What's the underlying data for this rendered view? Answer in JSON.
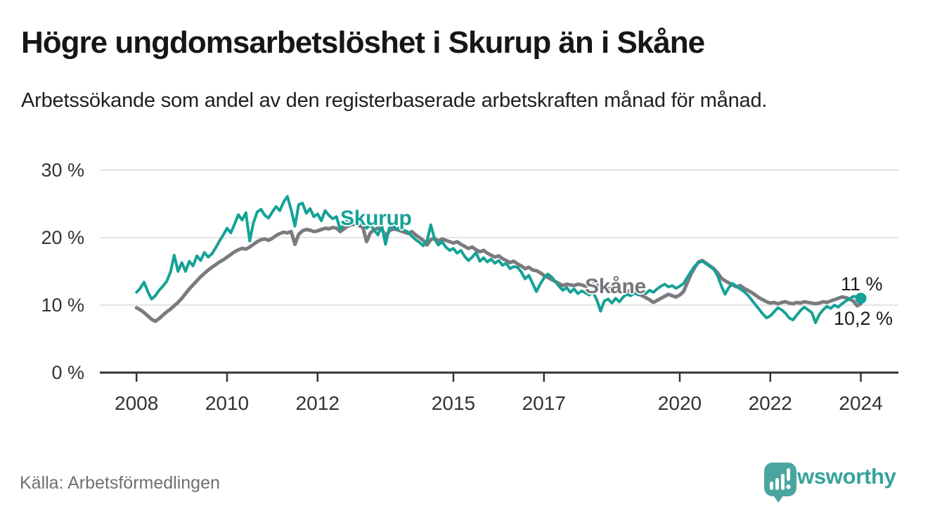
{
  "header": {
    "title": "Högre ungdomsarbetslöshet i Skurup än i Skåne",
    "subtitle": "Arbetssökande som andel av den registerbaserade arbetskraften månad för månad."
  },
  "footer": {
    "source": "Källa: Arbetsförmedlingen",
    "logo": {
      "brand": "Newsworthy",
      "icon": "newsworthy-speech-bubble-bar-chart-icon"
    }
  },
  "colors": {
    "skurup": "#15a296",
    "skane": "#7b7a7f",
    "grid": "#dcdcdc",
    "axis": "#333333",
    "tick_text": "#333333",
    "title_text": "#161616",
    "source_text": "#6f6f6f",
    "logo_teal": "#4aa5a0",
    "wordmark_teal": "#35a29b"
  },
  "chart_data": {
    "type": "line",
    "title": "Högre ungdomsarbetslöshet i Skurup än i Skåne",
    "subtitle": "Arbetssökande som andel av den registerbaserade arbetskraften månad för månad.",
    "xlabel": "",
    "ylabel": "",
    "grid": "horizontal",
    "legend_position": "direct-labels-on-lines",
    "ylim": [
      0,
      30
    ],
    "xlim": [
      2007.19,
      2024.83
    ],
    "x_unit": "decimal year, monthly points: t = 2008 + i/12",
    "x_start": "2008-01",
    "frequency": "monthly",
    "y_ticks": [
      {
        "value": 0,
        "label": "0 %"
      },
      {
        "value": 10,
        "label": "10 %"
      },
      {
        "value": 20,
        "label": "20 %"
      },
      {
        "value": 30,
        "label": "30 %"
      }
    ],
    "x_ticks": [
      {
        "year": 2008,
        "label": "2008"
      },
      {
        "year": 2010,
        "label": "2010"
      },
      {
        "year": 2012,
        "label": "2012"
      },
      {
        "year": 2015,
        "label": "2015"
      },
      {
        "year": 2017,
        "label": "2017"
      },
      {
        "year": 2020,
        "label": "2020"
      },
      {
        "year": 2022,
        "label": "2022"
      },
      {
        "year": 2024,
        "label": "2024"
      }
    ],
    "series": [
      {
        "name": "Skurup",
        "color": "#15a296",
        "end_label": "11 %",
        "end_value": 11.0,
        "values": [
          11.9,
          12.5,
          13.4,
          12.0,
          10.9,
          11.4,
          12.2,
          12.8,
          13.5,
          14.9,
          17.4,
          15.0,
          16.3,
          15.0,
          16.5,
          15.8,
          17.3,
          16.6,
          17.8,
          17.1,
          17.6,
          18.5,
          19.5,
          20.4,
          21.4,
          20.7,
          22.0,
          23.4,
          22.6,
          23.7,
          19.5,
          22.2,
          23.8,
          24.2,
          23.3,
          22.9,
          23.8,
          24.6,
          24.0,
          25.3,
          26.1,
          24.1,
          21.7,
          24.9,
          25.1,
          23.6,
          24.3,
          23.1,
          23.5,
          22.5,
          24.0,
          23.3,
          22.8,
          23.1,
          21.2,
          22.0,
          22.7,
          22.4,
          22.0,
          22.3,
          22.0,
          21.4,
          21.9,
          21.1,
          20.4,
          21.8,
          19.0,
          21.4,
          21.8,
          21.2,
          21.6,
          21.1,
          20.8,
          20.2,
          19.7,
          19.3,
          18.8,
          19.5,
          21.9,
          19.8,
          18.9,
          19.4,
          18.6,
          18.1,
          18.4,
          17.7,
          18.1,
          17.2,
          16.6,
          17.1,
          17.8,
          16.5,
          17.0,
          16.4,
          16.8,
          16.2,
          16.6,
          15.9,
          16.2,
          15.4,
          15.7,
          15.6,
          14.9,
          13.9,
          14.4,
          13.2,
          12.0,
          13.1,
          14.0,
          14.6,
          14.2,
          13.5,
          12.8,
          12.2,
          12.6,
          11.9,
          12.4,
          11.7,
          12.1,
          11.8,
          11.5,
          11.9,
          10.8,
          9.1,
          10.6,
          10.9,
          10.3,
          11.0,
          10.5,
          11.2,
          11.6,
          11.4,
          11.8,
          11.5,
          12.0,
          11.7,
          12.2,
          11.9,
          12.4,
          12.8,
          13.1,
          12.7,
          12.9,
          12.5,
          12.8,
          13.2,
          14.1,
          15.0,
          15.8,
          16.3,
          16.5,
          16.1,
          15.7,
          15.3,
          14.4,
          12.9,
          11.6,
          12.6,
          13.2,
          12.8,
          12.4,
          12.0,
          11.5,
          10.8,
          10.1,
          9.4,
          8.7,
          8.1,
          8.4,
          9.0,
          9.6,
          9.3,
          8.8,
          8.1,
          7.8,
          8.5,
          9.2,
          9.7,
          9.3,
          8.9,
          7.4,
          8.6,
          9.3,
          9.8,
          9.5,
          10.0,
          9.7,
          10.2,
          10.6,
          10.9,
          11.3,
          11.2,
          11.0
        ]
      },
      {
        "name": "Skåne",
        "color": "#7b7a7f",
        "end_label": "10,2 %",
        "end_value": 10.2,
        "values": [
          9.6,
          9.3,
          8.9,
          8.4,
          7.9,
          7.6,
          8.0,
          8.5,
          9.0,
          9.4,
          9.9,
          10.4,
          11.0,
          11.7,
          12.4,
          13.0,
          13.6,
          14.2,
          14.7,
          15.2,
          15.6,
          16.0,
          16.4,
          16.7,
          17.1,
          17.5,
          17.9,
          18.2,
          18.4,
          18.3,
          18.6,
          19.0,
          19.4,
          19.7,
          19.8,
          19.6,
          19.9,
          20.3,
          20.6,
          20.8,
          20.7,
          20.9,
          19.0,
          20.5,
          21.0,
          21.2,
          21.1,
          20.9,
          21.0,
          21.2,
          21.4,
          21.3,
          21.5,
          21.4,
          20.9,
          21.3,
          21.7,
          21.9,
          22.0,
          21.8,
          21.5,
          19.4,
          20.7,
          21.2,
          21.4,
          21.3,
          20.2,
          21.0,
          21.3,
          21.2,
          21.0,
          20.8,
          20.6,
          20.9,
          20.4,
          20.0,
          19.6,
          18.9,
          19.7,
          19.9,
          19.5,
          19.8,
          19.6,
          19.4,
          19.2,
          19.4,
          19.0,
          18.7,
          18.4,
          18.6,
          18.2,
          17.9,
          18.1,
          17.7,
          17.4,
          17.1,
          17.3,
          16.9,
          16.6,
          16.3,
          16.5,
          16.1,
          15.8,
          15.4,
          15.6,
          15.2,
          15.1,
          14.8,
          14.4,
          14.1,
          13.8,
          13.5,
          13.2,
          12.9,
          13.1,
          13.0,
          12.9,
          13.1,
          13.0,
          12.8,
          12.9,
          13.1,
          13.0,
          12.8,
          12.6,
          12.4,
          12.5,
          12.3,
          12.1,
          12.2,
          12.0,
          12.2,
          12.0,
          11.7,
          11.4,
          11.1,
          10.8,
          10.4,
          10.7,
          11.0,
          11.3,
          11.6,
          11.4,
          11.2,
          11.5,
          12.0,
          13.3,
          14.6,
          15.6,
          16.4,
          16.6,
          16.2,
          15.8,
          15.4,
          14.8,
          14.0,
          13.6,
          13.3,
          13.0,
          12.7,
          12.9,
          12.5,
          12.2,
          11.9,
          11.5,
          11.1,
          10.8,
          10.5,
          10.3,
          10.4,
          10.2,
          10.4,
          10.5,
          10.3,
          10.2,
          10.4,
          10.3,
          10.5,
          10.4,
          10.3,
          10.2,
          10.3,
          10.5,
          10.4,
          10.6,
          10.8,
          11.0,
          11.2,
          11.1,
          10.9,
          10.6,
          9.9,
          10.2
        ]
      }
    ]
  }
}
